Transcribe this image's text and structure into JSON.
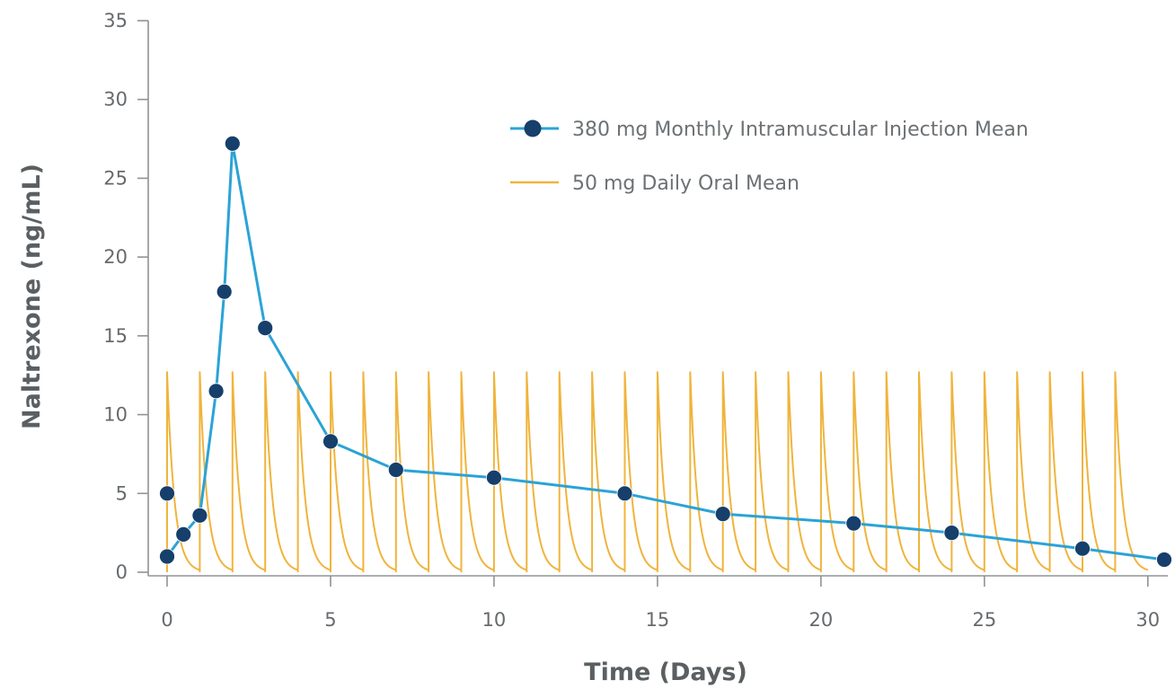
{
  "chart_data": {
    "type": "line",
    "title": "",
    "xlabel": "Time (Days)",
    "ylabel": "Naltrexone (ng/mL)",
    "xlim": [
      0,
      30.5
    ],
    "ylim": [
      0,
      35
    ],
    "x_ticks": [
      0,
      5,
      10,
      15,
      20,
      25,
      30
    ],
    "y_ticks": [
      0,
      5,
      10,
      15,
      20,
      25,
      30,
      35
    ],
    "grid": false,
    "legend_position": "top-right",
    "series": [
      {
        "name": "380 mg Monthly Intramuscular Injection Mean",
        "style": "line-with-markers",
        "color": "#2ba3d6",
        "marker_color": "#163f6b",
        "points": [
          {
            "x": 0,
            "y": 1.0
          },
          {
            "x": 0.5,
            "y": 2.4
          },
          {
            "x": 1,
            "y": 3.6
          },
          {
            "x": 1.5,
            "y": 11.5
          },
          {
            "x": 1.75,
            "y": 17.8
          },
          {
            "x": 2,
            "y": 27.2
          },
          {
            "x": 3,
            "y": 15.5
          },
          {
            "x": 5,
            "y": 8.3
          },
          {
            "x": 7,
            "y": 6.5
          },
          {
            "x": 10,
            "y": 6.0
          },
          {
            "x": 14,
            "y": 5.0
          },
          {
            "x": 17,
            "y": 3.7
          },
          {
            "x": 21,
            "y": 3.1
          },
          {
            "x": 24,
            "y": 2.5
          },
          {
            "x": 28,
            "y": 1.5
          },
          {
            "x": 30.5,
            "y": 0.8
          }
        ],
        "extra_markers": [
          {
            "x": 0,
            "y": 5.0
          }
        ]
      },
      {
        "name": "50 mg Daily Oral Mean",
        "style": "line",
        "color": "#f0b43c",
        "dose_times": [
          0,
          1,
          2,
          3,
          4,
          5,
          6,
          7,
          8,
          9,
          10,
          11,
          12,
          13,
          14,
          15,
          16,
          17,
          18,
          19,
          20,
          21,
          22,
          23,
          24,
          25,
          26,
          27,
          28,
          29
        ],
        "peak": 12.7,
        "trough": 0
      }
    ]
  }
}
